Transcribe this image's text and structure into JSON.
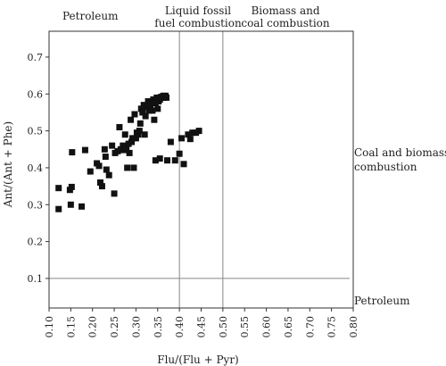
{
  "chart_data": {
    "type": "scatter",
    "xlabel": "Flu/(Flu + Pyr)",
    "ylabel": "Ant/(Ant + Phe)",
    "xlim": [
      0.1,
      0.8
    ],
    "ylim": [
      0.02,
      0.77
    ],
    "xticks": [
      "0.10",
      "0.15",
      "0.20",
      "0.25",
      "0.30",
      "0.35",
      "0.40",
      "0.45",
      "0.50",
      "0.55",
      "0.60",
      "0.65",
      "0.70",
      "0.75",
      "0.80"
    ],
    "yticks": [
      "0.1",
      "0.2",
      "0.3",
      "0.4",
      "0.5",
      "0.6",
      "0.7"
    ],
    "grid": false,
    "legend": "none",
    "marker": "filled-square",
    "marker_color": "#111111",
    "reference_lines": {
      "vertical": [
        0.4,
        0.5
      ],
      "horizontal": [
        0.1
      ],
      "line_color": "#888888"
    },
    "region_labels": {
      "top_left": "Petroleum",
      "top_middle_1": "Liquid fossil",
      "top_middle_2": "fuel combustion",
      "top_right_1": "Biomass and",
      "top_right_2": "coal combustion",
      "right_upper_1": "Coal and biomass",
      "right_upper_2": "combustion",
      "right_lower": "Petroleum"
    },
    "points": [
      [
        0.122,
        0.345
      ],
      [
        0.122,
        0.288
      ],
      [
        0.148,
        0.34
      ],
      [
        0.15,
        0.3
      ],
      [
        0.153,
        0.442
      ],
      [
        0.152,
        0.348
      ],
      [
        0.175,
        0.295
      ],
      [
        0.183,
        0.448
      ],
      [
        0.195,
        0.39
      ],
      [
        0.21,
        0.412
      ],
      [
        0.215,
        0.405
      ],
      [
        0.218,
        0.36
      ],
      [
        0.222,
        0.35
      ],
      [
        0.228,
        0.45
      ],
      [
        0.23,
        0.43
      ],
      [
        0.232,
        0.395
      ],
      [
        0.238,
        0.38
      ],
      [
        0.245,
        0.46
      ],
      [
        0.25,
        0.33
      ],
      [
        0.252,
        0.44
      ],
      [
        0.258,
        0.445
      ],
      [
        0.262,
        0.51
      ],
      [
        0.265,
        0.45
      ],
      [
        0.27,
        0.46
      ],
      [
        0.272,
        0.448
      ],
      [
        0.275,
        0.49
      ],
      [
        0.278,
        0.455
      ],
      [
        0.28,
        0.4
      ],
      [
        0.283,
        0.465
      ],
      [
        0.285,
        0.44
      ],
      [
        0.288,
        0.53
      ],
      [
        0.29,
        0.47
      ],
      [
        0.292,
        0.48
      ],
      [
        0.295,
        0.4
      ],
      [
        0.297,
        0.545
      ],
      [
        0.3,
        0.48
      ],
      [
        0.302,
        0.495
      ],
      [
        0.305,
        0.49
      ],
      [
        0.308,
        0.5
      ],
      [
        0.31,
        0.52
      ],
      [
        0.312,
        0.56
      ],
      [
        0.315,
        0.55
      ],
      [
        0.318,
        0.57
      ],
      [
        0.32,
        0.49
      ],
      [
        0.322,
        0.54
      ],
      [
        0.325,
        0.565
      ],
      [
        0.328,
        0.58
      ],
      [
        0.33,
        0.555
      ],
      [
        0.333,
        0.57
      ],
      [
        0.335,
        0.575
      ],
      [
        0.338,
        0.555
      ],
      [
        0.34,
        0.585
      ],
      [
        0.342,
        0.53
      ],
      [
        0.345,
        0.42
      ],
      [
        0.345,
        0.575
      ],
      [
        0.348,
        0.59
      ],
      [
        0.35,
        0.56
      ],
      [
        0.352,
        0.58
      ],
      [
        0.355,
        0.425
      ],
      [
        0.355,
        0.585
      ],
      [
        0.358,
        0.592
      ],
      [
        0.36,
        0.59
      ],
      [
        0.363,
        0.595
      ],
      [
        0.365,
        0.59
      ],
      [
        0.368,
        0.595
      ],
      [
        0.37,
        0.59
      ],
      [
        0.372,
        0.42
      ],
      [
        0.38,
        0.47
      ],
      [
        0.39,
        0.42
      ],
      [
        0.4,
        0.438
      ],
      [
        0.405,
        0.48
      ],
      [
        0.41,
        0.41
      ],
      [
        0.42,
        0.49
      ],
      [
        0.425,
        0.478
      ],
      [
        0.43,
        0.495
      ],
      [
        0.438,
        0.495
      ],
      [
        0.445,
        0.5
      ]
    ]
  }
}
